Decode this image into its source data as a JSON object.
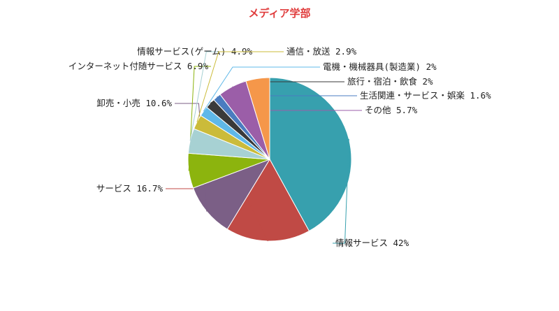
{
  "chart_data": {
    "type": "pie",
    "title": "メディア学部",
    "start_angle_deg": 0,
    "direction": "clockwise",
    "slices": [
      {
        "label": "情報サービス",
        "value": 42,
        "display": "42%",
        "color": "#37a0ae"
      },
      {
        "label": "サービス",
        "value": 16.7,
        "display": "16.7%",
        "color": "#c04a45"
      },
      {
        "label": "卸売・小売",
        "value": 10.6,
        "display": "10.6%",
        "color": "#7b5f86"
      },
      {
        "label": "インターネット付随サービス",
        "value": 6.9,
        "display": "6.9%",
        "color": "#8cb40e"
      },
      {
        "label": "情報サービス(ゲーム)",
        "value": 4.9,
        "display": "4.9%",
        "color": "#a7d1d3"
      },
      {
        "label": "通信・放送",
        "value": 2.9,
        "display": "2.9%",
        "color": "#cbbb3a"
      },
      {
        "label": "電機・機械器具(製造業)",
        "value": 2,
        "display": "2%",
        "color": "#5fb8e8"
      },
      {
        "label": "旅行・宿泊・飲食",
        "value": 2,
        "display": "2%",
        "color": "#3a3a3a"
      },
      {
        "label": "生活関連・サービス・娯楽",
        "value": 1.6,
        "display": "1.6%",
        "color": "#4a7cc0"
      },
      {
        "label": "その他",
        "value": 5.7,
        "display": "5.7%",
        "color": "#9b5ea8"
      },
      {
        "label": "",
        "value": 4.7,
        "display": "",
        "color": "#f5974a"
      }
    ]
  }
}
